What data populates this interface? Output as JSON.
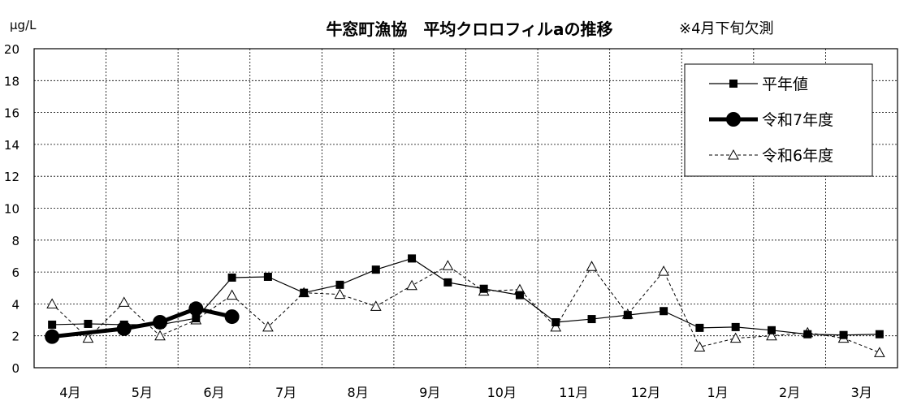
{
  "chart_data": {
    "type": "line",
    "title": "牛窓町漁協　平均クロロフィルaの推移",
    "note": "※4月下旬欠測",
    "ylabel": "μg/L",
    "ylim": [
      0,
      20
    ],
    "yticks": [
      "0",
      "2",
      "4",
      "6",
      "8",
      "10",
      "12",
      "14",
      "16",
      "18",
      "20"
    ],
    "categories": [
      "4月",
      "5月",
      "6月",
      "7月",
      "8月",
      "9月",
      "10月",
      "11月",
      "12月",
      "1月",
      "2月",
      "3月"
    ],
    "grid": true,
    "legend_position": "top-right",
    "series": [
      {
        "name": "平年値",
        "style": "solid-thin",
        "marker": "square",
        "color": "#000000",
        "x": [
          0.25,
          0.75,
          1.25,
          1.75,
          2.25,
          2.75,
          3.25,
          3.75,
          4.25,
          4.75,
          5.25,
          5.75,
          6.25,
          6.75,
          7.25,
          7.75,
          8.25,
          8.75,
          9.25,
          9.75,
          10.25,
          10.75,
          11.25,
          11.75
        ],
        "values": [
          2.7,
          2.75,
          2.7,
          2.7,
          3.1,
          5.65,
          5.7,
          4.7,
          5.2,
          6.15,
          6.85,
          5.35,
          4.95,
          4.55,
          2.85,
          3.05,
          3.3,
          3.55,
          2.5,
          2.55,
          2.35,
          2.1,
          2.05,
          2.1
        ]
      },
      {
        "name": "令和7年度",
        "style": "solid-bold",
        "marker": "circle",
        "color": "#000000",
        "x": [
          0.25,
          1.25,
          1.75,
          2.25,
          2.75
        ],
        "values": [
          1.95,
          2.45,
          2.85,
          3.7,
          3.2
        ]
      },
      {
        "name": "令和6年度",
        "style": "dashed",
        "marker": "triangle-open",
        "color": "#000000",
        "x": [
          0.25,
          0.75,
          1.25,
          1.75,
          2.25,
          2.75,
          3.25,
          3.75,
          4.25,
          4.75,
          5.25,
          5.75,
          6.25,
          6.75,
          7.25,
          7.75,
          8.25,
          8.75,
          9.25,
          9.75,
          10.25,
          10.75,
          11.25,
          11.75
        ],
        "values": [
          4.0,
          1.85,
          4.1,
          2.0,
          3.0,
          4.55,
          2.55,
          4.7,
          4.6,
          3.85,
          5.15,
          6.4,
          4.8,
          4.9,
          2.55,
          6.35,
          3.35,
          6.05,
          1.3,
          1.85,
          2.0,
          2.2,
          1.85,
          0.95
        ]
      }
    ]
  }
}
